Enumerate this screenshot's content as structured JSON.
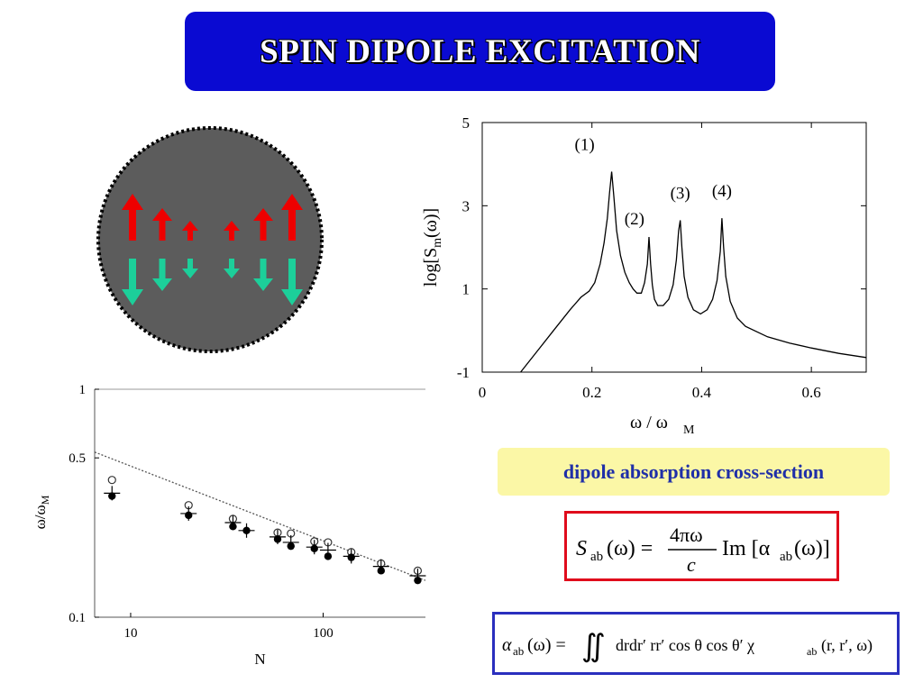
{
  "slide": {
    "title": "SPIN DIPOLE EXCITATION",
    "label": "dipole absorption cross-section",
    "title_bg": "#0a0ad2",
    "label_bg": "#fbf7a6",
    "label_color": "#1f2fa8",
    "formula1_border": "#e00c1c",
    "formula2_border": "#2a2fbe"
  },
  "formulas": {
    "f1": {
      "lhs": "S",
      "lhs_sub": "ab",
      "arg": "(ω) =",
      "numerator": "4πω",
      "denominator": "c",
      "rhs": "Im [α",
      "rhs_sub": "ab",
      "rhs_end": "(ω)]"
    },
    "f2": {
      "lhs": "α",
      "lhs_sub": "ab",
      "arg": "(ω) =",
      "integral": "∬",
      "body": "drdr′ rr′ cos θ  cos θ′ χ",
      "chi_sub": "ab",
      "tail": "(r, r′, ω)"
    }
  },
  "diagram": {
    "circle_fill": "#5c5c5c",
    "up_color": "#ee0000",
    "down_color": "#1ccf9a"
  },
  "chart_data": [
    {
      "type": "line",
      "title": "",
      "xlabel": "ω / ω",
      "xlabel_sub": "M",
      "ylabel": "log[S",
      "ylabel_sub": "m",
      "ylabel_end": "(ω)]",
      "xlim": [
        0,
        0.7
      ],
      "ylim": [
        -1,
        5
      ],
      "xticks": [
        0,
        0.2,
        0.4,
        0.6
      ],
      "xtick_labels": [
        "0",
        "0.2",
        "0.4",
        "0.6"
      ],
      "yticks": [
        -1,
        1,
        3,
        5
      ],
      "ytick_labels": [
        "-1",
        "1",
        "3",
        "5"
      ],
      "peak_labels": [
        "(1)",
        "(2)",
        "(3)",
        "(4)"
      ],
      "series": [
        {
          "x": [
            0.07,
            0.1,
            0.13,
            0.16,
            0.18,
            0.195,
            0.205,
            0.215,
            0.222,
            0.228,
            0.232,
            0.236,
            0.24,
            0.245,
            0.252,
            0.26,
            0.268,
            0.275,
            0.282,
            0.29,
            0.296,
            0.301,
            0.304,
            0.307,
            0.31,
            0.314,
            0.32,
            0.33,
            0.34,
            0.348,
            0.354,
            0.358,
            0.361,
            0.364,
            0.368,
            0.375,
            0.385,
            0.398,
            0.41,
            0.42,
            0.428,
            0.434,
            0.437,
            0.44,
            0.444,
            0.452,
            0.465,
            0.48,
            0.52,
            0.56,
            0.6,
            0.65,
            0.7
          ],
          "values": [
            -1.0,
            -0.5,
            0.0,
            0.5,
            0.8,
            0.95,
            1.15,
            1.6,
            2.1,
            2.7,
            3.3,
            3.82,
            3.2,
            2.4,
            1.8,
            1.4,
            1.15,
            1.0,
            0.9,
            0.9,
            1.15,
            1.6,
            2.25,
            1.6,
            1.1,
            0.75,
            0.6,
            0.6,
            0.75,
            1.1,
            1.7,
            2.4,
            2.65,
            2.0,
            1.3,
            0.8,
            0.5,
            0.4,
            0.5,
            0.75,
            1.2,
            1.9,
            2.7,
            2.0,
            1.3,
            0.7,
            0.3,
            0.1,
            -0.15,
            -0.3,
            -0.42,
            -0.55,
            -0.65
          ]
        }
      ]
    },
    {
      "type": "scatter",
      "title": "",
      "xlabel": "N",
      "ylabel": "ω/ω",
      "ylabel_sub": "M",
      "x_scale": "log",
      "y_scale": "log",
      "xlim": [
        6.5,
        340
      ],
      "ylim": [
        0.1,
        1
      ],
      "xticks": [
        10,
        100
      ],
      "xtick_labels": [
        "10",
        "100"
      ],
      "yticks": [
        0.1,
        0.5,
        1
      ],
      "ytick_labels": [
        "0.1",
        "0.5",
        "1"
      ],
      "dotted_line": {
        "x": [
          6.5,
          340
        ],
        "y": [
          0.53,
          0.145
        ]
      },
      "series": [
        {
          "name": "open",
          "marker": "open-circle",
          "x": [
            8,
            20,
            34,
            58,
            68,
            90,
            106,
            140,
            200,
            310
          ],
          "values": [
            0.4,
            0.31,
            0.27,
            0.235,
            0.233,
            0.215,
            0.213,
            0.193,
            0.172,
            0.16
          ]
        },
        {
          "name": "filled",
          "marker": "filled-circle",
          "x": [
            8,
            20,
            34,
            40,
            58,
            68,
            90,
            106,
            140,
            200,
            310
          ],
          "values": [
            0.34,
            0.28,
            0.25,
            0.24,
            0.22,
            0.205,
            0.2,
            0.185,
            0.183,
            0.16,
            0.145
          ]
        },
        {
          "name": "plus",
          "marker": "plus",
          "x": [
            8,
            20,
            34,
            40,
            58,
            68,
            90,
            106,
            140,
            200,
            310
          ],
          "values": [
            0.35,
            0.285,
            0.26,
            0.24,
            0.225,
            0.213,
            0.203,
            0.197,
            0.185,
            0.167,
            0.152
          ]
        }
      ]
    }
  ]
}
